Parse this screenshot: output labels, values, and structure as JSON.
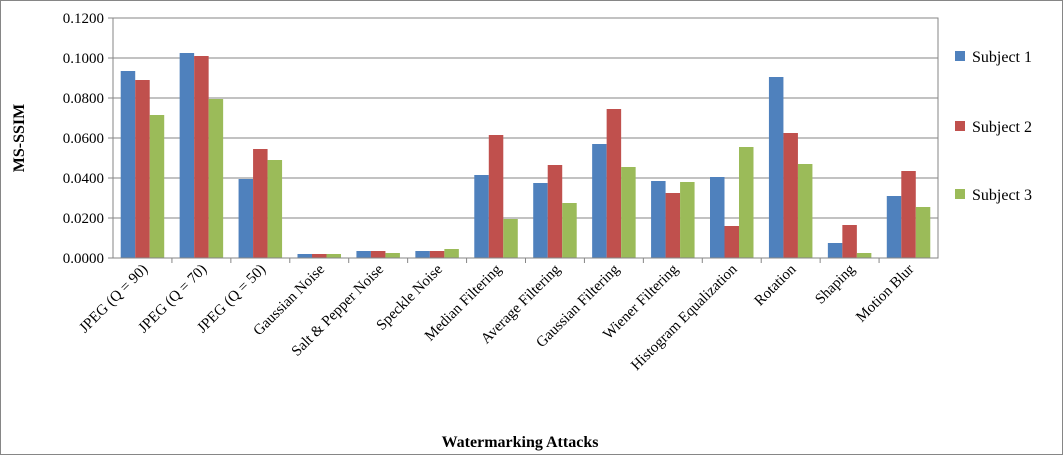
{
  "chart_data": {
    "type": "bar",
    "title": "",
    "xlabel": "Watermarking Attacks",
    "ylabel": "MS-SSIM",
    "ylim": [
      0,
      0.12
    ],
    "yticks": [
      "0.0000",
      "0.0200",
      "0.0400",
      "0.0600",
      "0.0800",
      "0.1000",
      "0.1200"
    ],
    "grid": true,
    "legend_position": "right",
    "categories": [
      "JPEG (Q = 90)",
      "JPEG (Q = 70)",
      "JPEG (Q = 50)",
      "Gaussian Noise",
      "Salt & Pepper Noise",
      "Speckle Noise",
      "Median Filtering",
      "Average Filtering",
      "Gaussian Filtering",
      "Wiener Filtering",
      "Histogram Equalization",
      "Rotation",
      "Shaping",
      "Motion Blur"
    ],
    "series": [
      {
        "name": "Subject 1",
        "color": "#4f81bd",
        "values": [
          0.0935,
          0.1025,
          0.0395,
          0.002,
          0.0035,
          0.0035,
          0.0415,
          0.0375,
          0.057,
          0.0385,
          0.0405,
          0.0905,
          0.0075,
          0.031
        ]
      },
      {
        "name": "Subject 2",
        "color": "#c0504d",
        "values": [
          0.089,
          0.101,
          0.0545,
          0.002,
          0.0035,
          0.0035,
          0.0615,
          0.0465,
          0.0745,
          0.0325,
          0.016,
          0.0625,
          0.0165,
          0.0435
        ]
      },
      {
        "name": "Subject 3",
        "color": "#9bbb59",
        "values": [
          0.0715,
          0.0795,
          0.049,
          0.002,
          0.0025,
          0.0045,
          0.0195,
          0.0275,
          0.0455,
          0.038,
          0.0555,
          0.047,
          0.0025,
          0.0255
        ]
      }
    ]
  }
}
